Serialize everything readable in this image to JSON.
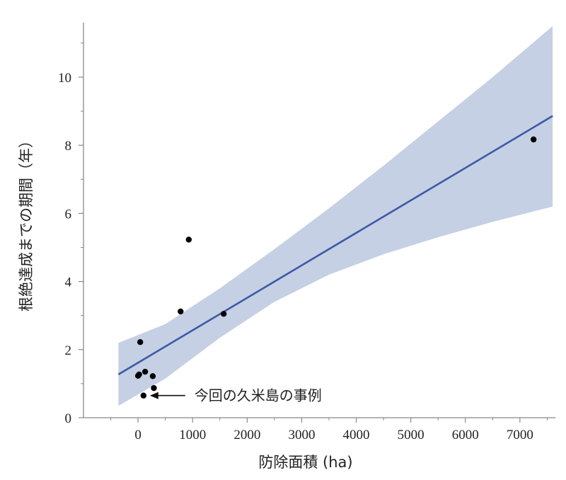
{
  "chart_data": {
    "type": "scatter",
    "xlabel": "防除面積 (ha)",
    "ylabel": "根絶達成までの期間（年）",
    "xlim": [
      -1000,
      7650
    ],
    "ylim": [
      0,
      11.6
    ],
    "xticks": [
      0,
      1000,
      2000,
      3000,
      4000,
      5000,
      6000,
      7000
    ],
    "yticks": [
      0,
      2,
      4,
      6,
      8,
      10
    ],
    "grid": false,
    "points": [
      {
        "x": 0,
        "y": 1.23
      },
      {
        "x": 20,
        "y": 1.27
      },
      {
        "x": 40,
        "y": 2.22
      },
      {
        "x": 130,
        "y": 1.35
      },
      {
        "x": 100,
        "y": 0.65
      },
      {
        "x": 270,
        "y": 1.22
      },
      {
        "x": 290,
        "y": 0.87
      },
      {
        "x": 780,
        "y": 3.12
      },
      {
        "x": 930,
        "y": 5.23
      },
      {
        "x": 1570,
        "y": 3.05
      },
      {
        "x": 7250,
        "y": 8.17
      }
    ],
    "fit_line": {
      "x": [
        -360,
        7600
      ],
      "y": [
        1.27,
        8.86
      ]
    },
    "confidence_band": {
      "x": [
        -360,
        500,
        1500,
        2500,
        3500,
        4500,
        5500,
        6500,
        7600
      ],
      "upper": [
        2.2,
        2.75,
        3.8,
        4.95,
        6.15,
        7.4,
        8.7,
        10.0,
        11.5
      ],
      "lower": [
        0.35,
        1.15,
        2.35,
        3.4,
        4.2,
        4.8,
        5.3,
        5.75,
        6.2
      ]
    },
    "colors": {
      "line": "#3c5aa6",
      "band": "#c6d0e4",
      "points": "#000000",
      "axis": "#888888"
    },
    "annotation": {
      "text": "今回の久米島の事例",
      "target": {
        "x": 100,
        "y": 0.65
      }
    }
  }
}
